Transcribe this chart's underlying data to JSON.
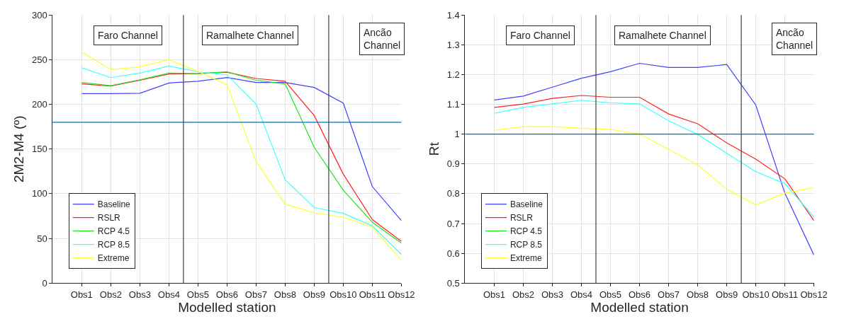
{
  "chart_data": [
    {
      "type": "line",
      "xlabel": "Modelled station",
      "ylabel": "2M2-M4 (º)",
      "categories": [
        null,
        "Obs1",
        "Obs2",
        "Obs3",
        "Obs4",
        "Obs5",
        "Obs6",
        "Obs7",
        "Obs8",
        "Obs9",
        "Obs10",
        "Obs11",
        "Obs12"
      ],
      "ylim": [
        0,
        300
      ],
      "yticks": [
        0,
        50,
        100,
        150,
        200,
        250,
        300
      ],
      "series": [
        {
          "name": "Baseline",
          "color": "#4040ff",
          "values": [
            null,
            212,
            212,
            212.5,
            224,
            226,
            230,
            224.6,
            224.6,
            219,
            201.5,
            108,
            70
          ]
        },
        {
          "name": "RSLR",
          "color": "#ff2020",
          "values": [
            null,
            223,
            220.5,
            227,
            234,
            234.5,
            236,
            229,
            226,
            187.5,
            122,
            71,
            46.7
          ]
        },
        {
          "name": "RCP 4.5",
          "color": "#20e020",
          "values": [
            null,
            224.6,
            221,
            227.6,
            235,
            234.5,
            236.5,
            227,
            223,
            152,
            104,
            68,
            44.7
          ]
        },
        {
          "name": "RCP 8.5",
          "color": "#40ffff",
          "values": [
            null,
            241,
            230,
            235,
            243,
            236.5,
            233,
            200.5,
            115.7,
            84.5,
            78,
            64,
            32
          ]
        },
        {
          "name": "Extreme",
          "color": "#ffff30",
          "values": [
            null,
            258.6,
            239,
            242,
            250,
            237,
            222,
            135.8,
            88.3,
            78.7,
            73.6,
            62.7,
            25.4
          ]
        }
      ],
      "ref_lines": [
        {
          "axis": "y",
          "value": 180,
          "color": "#0072bd"
        }
      ],
      "annotations": [
        "Faro Channel",
        "Ramalhete Channel",
        "Ancão\nChannel"
      ],
      "grid": true,
      "legend": "bottom left",
      "marker": "none",
      "line_style": "solid"
    },
    {
      "type": "line",
      "xlabel": "Modelled station",
      "ylabel": "Rt",
      "categories": [
        null,
        "Obs1",
        "Obs2",
        "Obs3",
        "Obs4",
        "Obs5",
        "Obs6",
        "Obs7",
        "Obs8",
        "Obs9",
        "Obs10",
        "Obs11",
        "Obs12"
      ],
      "ylim": [
        0.5,
        1.4
      ],
      "yticks": [
        0.5,
        0.6,
        0.7,
        0.8,
        0.9,
        1,
        1.1,
        1.2,
        1.3,
        1.4
      ],
      "series": [
        {
          "name": "Baseline",
          "color": "#4040ff",
          "values": [
            null,
            1.115,
            1.128,
            1.158,
            1.188,
            1.21,
            1.238,
            1.224,
            1.224,
            1.234,
            1.098,
            0.802,
            0.594
          ]
        },
        {
          "name": "RSLR",
          "color": "#ff2020",
          "values": [
            null,
            1.09,
            1.101,
            1.12,
            1.13,
            1.124,
            1.124,
            1.068,
            1.035,
            0.971,
            0.916,
            0.85,
            0.71
          ]
        },
        {
          "name": "RCP 4.5",
          "color": "#20e020",
          "values": [
            null,
            null,
            null,
            null,
            null,
            null,
            null,
            null,
            null,
            null,
            null,
            null,
            null
          ]
        },
        {
          "name": "RCP 8.5",
          "color": "#40ffff",
          "values": [
            null,
            1.07,
            1.09,
            1.102,
            1.114,
            1.105,
            1.102,
            1.045,
            0.999,
            0.936,
            0.874,
            0.834,
            0.722
          ]
        },
        {
          "name": "Extreme",
          "color": "#ffff30",
          "values": [
            null,
            1.013,
            1.025,
            1.025,
            1.02,
            1.016,
            1.001,
            0.949,
            0.897,
            0.815,
            0.763,
            0.802,
            0.821
          ]
        }
      ],
      "ref_lines": [
        {
          "axis": "y",
          "value": 1,
          "color": "#0072bd"
        }
      ],
      "annotations": [
        "Faro Channel",
        "Ramalhete Channel",
        "Ancão\nChannel"
      ],
      "grid": true,
      "legend": "bottom left",
      "marker": "none",
      "line_style": "solid"
    }
  ]
}
